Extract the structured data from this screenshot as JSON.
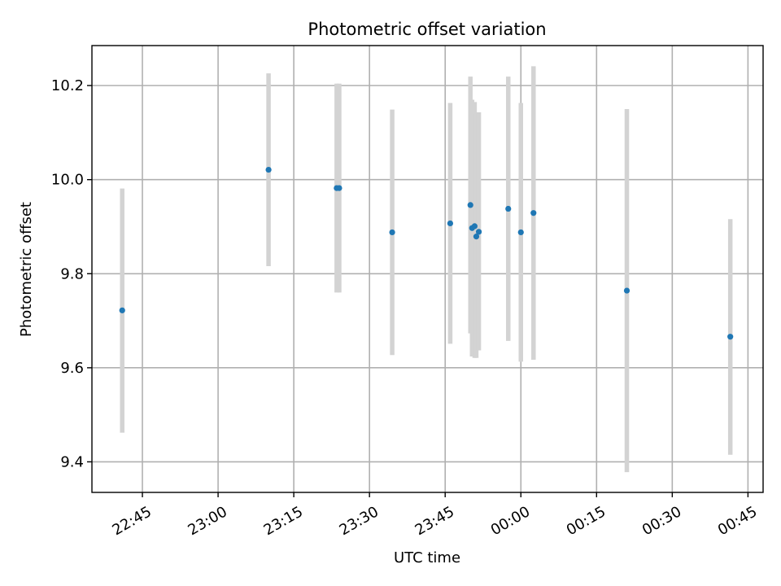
{
  "chart_data": {
    "type": "scatter",
    "title": "Photometric offset variation",
    "xlabel": "UTC time",
    "ylabel": "Photometric offset",
    "x_axis_kind": "time",
    "xlim": [
      "22:35",
      "00:48"
    ],
    "ylim": [
      9.335,
      10.285
    ],
    "x_ticks": [
      "22:45",
      "23:00",
      "23:15",
      "23:30",
      "23:45",
      "00:00",
      "00:15",
      "00:30",
      "00:45"
    ],
    "y_ticks": [
      9.4,
      9.6,
      9.8,
      10.0,
      10.2
    ],
    "y_tick_labels": [
      "9.4",
      "9.6",
      "9.8",
      "10.0",
      "10.2"
    ],
    "grid": true,
    "colors": {
      "marker": "#1f77b4",
      "errorbar": "#d3d3d3",
      "grid": "#b0b0b0"
    },
    "series": [
      {
        "points": [
          {
            "x": "22:41:00",
            "y": 9.722,
            "ylo": 9.462,
            "yhi": 9.981
          },
          {
            "x": "23:10:00",
            "y": 10.021,
            "ylo": 9.816,
            "yhi": 10.226
          },
          {
            "x": "23:23:30",
            "y": 9.982,
            "ylo": 9.76,
            "yhi": 10.204
          },
          {
            "x": "23:24:00",
            "y": 9.982,
            "ylo": 9.76,
            "yhi": 10.204
          },
          {
            "x": "23:34:30",
            "y": 9.888,
            "ylo": 9.627,
            "yhi": 10.149
          },
          {
            "x": "23:46:00",
            "y": 9.907,
            "ylo": 9.651,
            "yhi": 10.163
          },
          {
            "x": "23:50:00",
            "y": 9.946,
            "ylo": 9.673,
            "yhi": 10.219
          },
          {
            "x": "23:50:20",
            "y": 9.897,
            "ylo": 9.624,
            "yhi": 10.17
          },
          {
            "x": "23:50:50",
            "y": 9.901,
            "ylo": 9.621,
            "yhi": 10.165
          },
          {
            "x": "23:51:10",
            "y": 9.879,
            "ylo": 9.621,
            "yhi": 10.141
          },
          {
            "x": "23:51:40",
            "y": 9.889,
            "ylo": 9.637,
            "yhi": 10.143
          },
          {
            "x": "23:57:30",
            "y": 9.938,
            "ylo": 9.657,
            "yhi": 10.219
          },
          {
            "x": "00:00:00",
            "y": 9.888,
            "ylo": 9.613,
            "yhi": 10.163
          },
          {
            "x": "00:02:30",
            "y": 9.929,
            "ylo": 9.617,
            "yhi": 10.241
          },
          {
            "x": "00:21:00",
            "y": 9.764,
            "ylo": 9.378,
            "yhi": 10.15
          },
          {
            "x": "00:41:30",
            "y": 9.666,
            "ylo": 9.415,
            "yhi": 9.916
          }
        ]
      }
    ]
  }
}
